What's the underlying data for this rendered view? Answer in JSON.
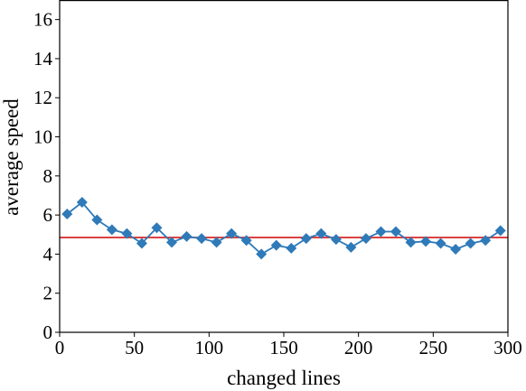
{
  "chart_data": {
    "type": "line",
    "xlabel": "changed lines",
    "ylabel": "average speed",
    "xlim": [
      0,
      300
    ],
    "ylim": [
      0,
      17
    ],
    "xticks": [
      0,
      50,
      100,
      150,
      200,
      250,
      300
    ],
    "yticks": [
      0,
      2,
      4,
      6,
      8,
      10,
      12,
      14,
      16
    ],
    "grid": false,
    "series": [
      {
        "color": "#2f7ab8",
        "marker": "diamond",
        "x": [
          5,
          15,
          25,
          35,
          45,
          55,
          65,
          75,
          85,
          95,
          105,
          115,
          125,
          135,
          145,
          155,
          165,
          175,
          185,
          195,
          205,
          215,
          225,
          235,
          245,
          255,
          265,
          275,
          285,
          295
        ],
        "y": [
          6.05,
          6.65,
          5.75,
          5.25,
          5.05,
          4.55,
          5.35,
          4.6,
          4.9,
          4.8,
          4.6,
          5.05,
          4.7,
          4.0,
          4.45,
          4.3,
          4.8,
          5.05,
          4.75,
          4.35,
          4.8,
          5.15,
          5.15,
          4.6,
          4.65,
          4.55,
          4.25,
          4.55,
          4.7,
          5.2
        ]
      }
    ],
    "reference_line": {
      "y": 4.85,
      "color": "#d62728"
    }
  }
}
